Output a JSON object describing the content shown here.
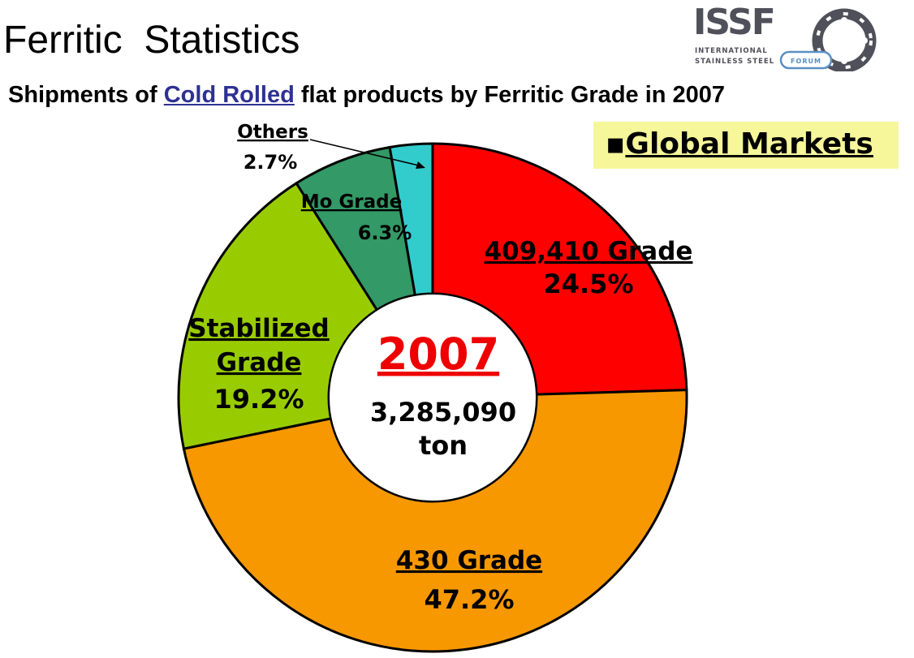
{
  "header": {
    "title": "Ferritic  Statistics",
    "subtitle_pre": "Shipments of ",
    "subtitle_highlight": "Cold Rolled",
    "subtitle_post": " flat products by Ferritic Grade in 2007",
    "market_bullet": "▪",
    "market_label": "Global Markets",
    "highlight_color": "#2e3192",
    "market_box_color": "#f6f69a"
  },
  "logo": {
    "name": "ISSF",
    "line1": "INTERNATIONAL",
    "line2": "STAINLESS STEEL",
    "badge": "FORUM",
    "color": "#50505a",
    "accent": "#5a8fc6"
  },
  "chart_data": {
    "type": "pie",
    "donut": true,
    "center_year": "2007",
    "center_value": "3,285,090",
    "center_unit": "ton",
    "slices": [
      {
        "name": "409,410 Grade",
        "value": 24.5,
        "label": "24.5%",
        "color": "#ff0000"
      },
      {
        "name": "430 Grade",
        "value": 47.2,
        "label": "47.2%",
        "color": "#f79800"
      },
      {
        "name": "Stabilized Grade",
        "value": 19.2,
        "label": "19.2%",
        "color": "#99cc00"
      },
      {
        "name": "Mo Grade",
        "value": 6.3,
        "label": "6.3%",
        "color": "#339966"
      },
      {
        "name": "Others",
        "value": 2.7,
        "label": "2.7%",
        "color": "#33cccc"
      }
    ]
  }
}
